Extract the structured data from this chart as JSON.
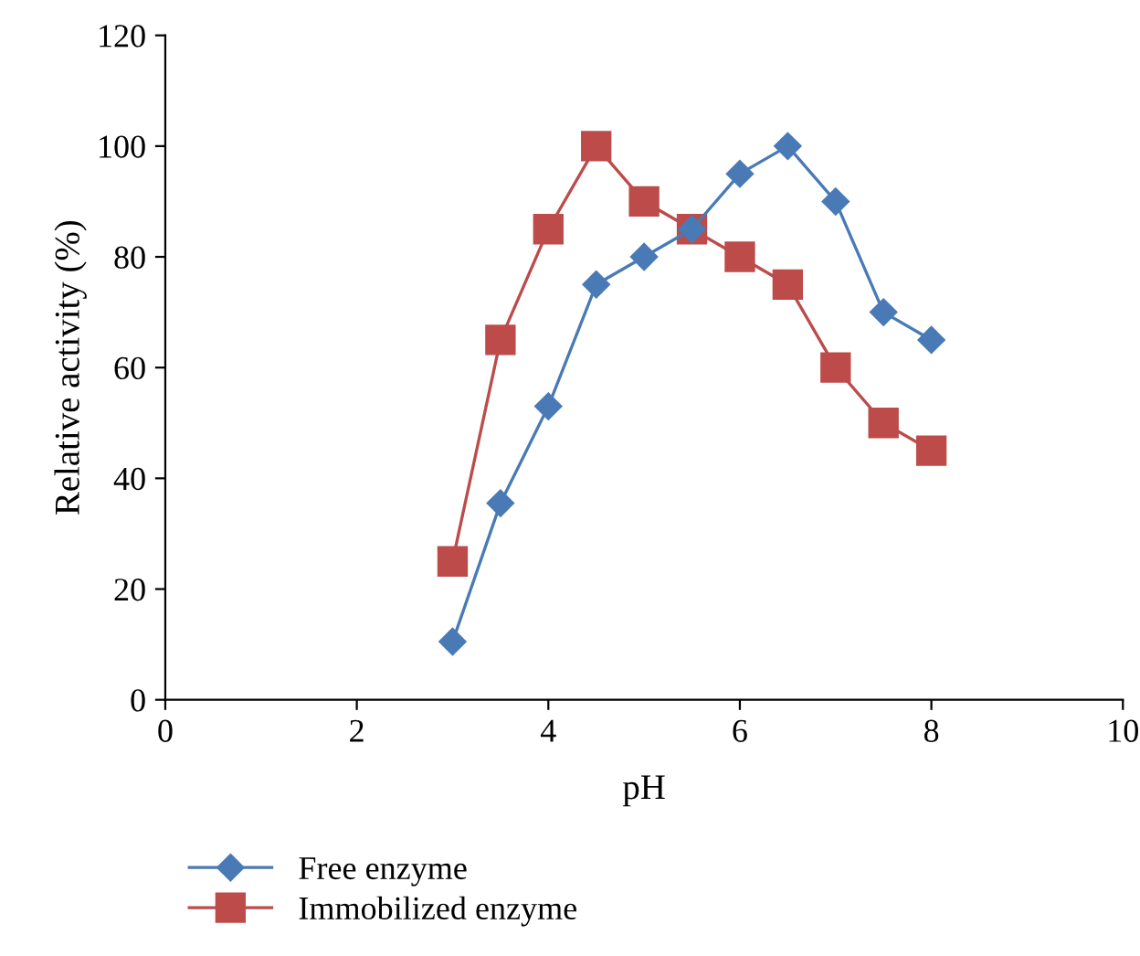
{
  "chart_data": {
    "type": "line",
    "xlabel": "pH",
    "ylabel": "Relative activity (%)",
    "x": [
      3,
      3.5,
      4,
      4.5,
      5,
      5.5,
      6,
      6.5,
      7,
      7.5,
      8
    ],
    "series": [
      {
        "name": "Free enzyme",
        "color": "#4a7ab5",
        "marker": "diamond",
        "values": [
          10.5,
          35.5,
          53,
          75,
          80,
          85,
          95,
          100,
          90,
          70,
          65
        ]
      },
      {
        "name": "Immobilized enzyme",
        "color": "#bc4b4a",
        "marker": "square",
        "values": [
          25,
          65,
          85,
          100,
          90,
          85,
          80,
          75,
          60,
          50,
          45
        ]
      }
    ],
    "xlim": [
      0,
      10
    ],
    "xticks": [
      0,
      2,
      4,
      6,
      8,
      10
    ],
    "ylim": [
      0,
      120
    ],
    "yticks": [
      0,
      20,
      40,
      60,
      80,
      100,
      120
    ],
    "grid": false,
    "legend": "bottom left",
    "line_style": "solid"
  }
}
